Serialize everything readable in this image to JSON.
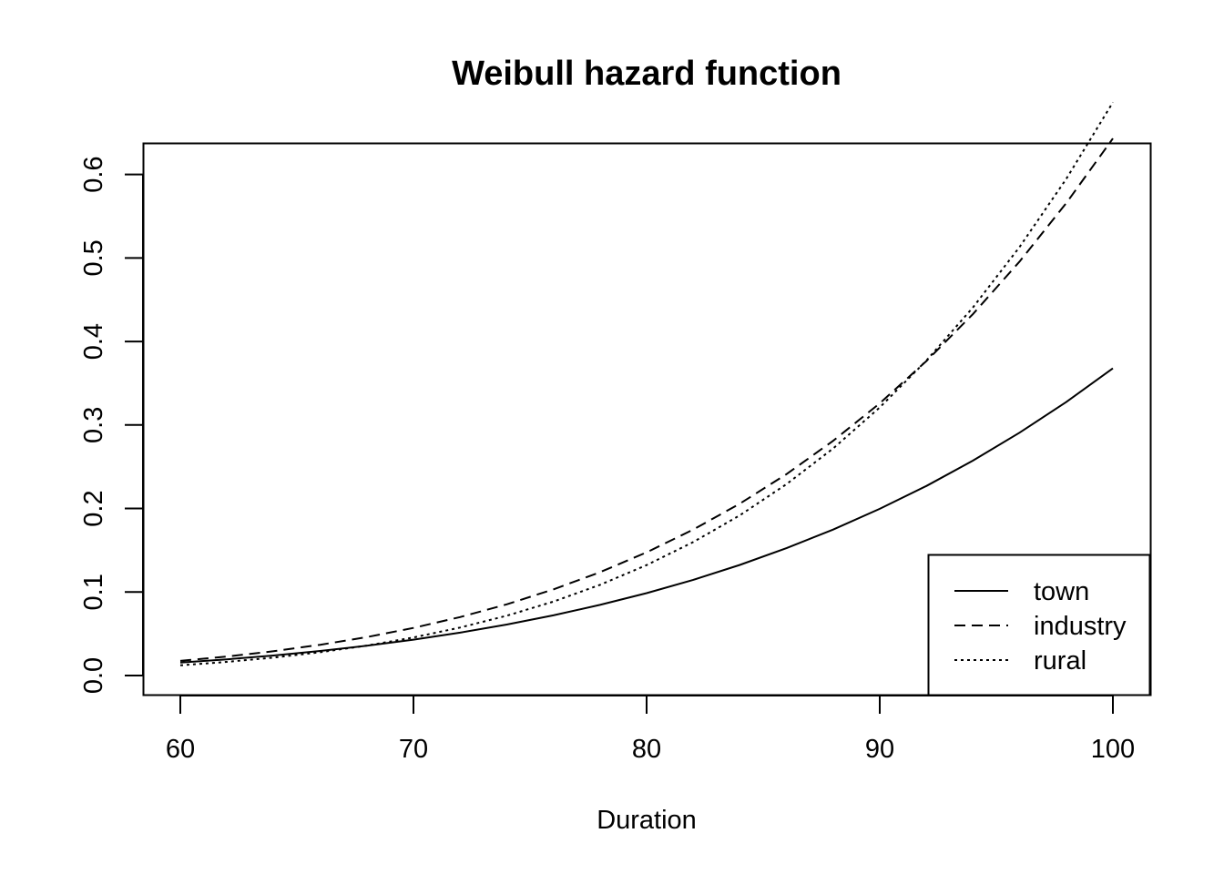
{
  "chart_data": {
    "type": "line",
    "title": "Weibull hazard function",
    "xlabel": "Duration",
    "ylabel": "",
    "xlim": [
      60,
      100
    ],
    "ylim": [
      0.0,
      0.6
    ],
    "xticks": [
      "60",
      "70",
      "80",
      "90",
      "100"
    ],
    "yticks": [
      "0.0",
      "0.1",
      "0.2",
      "0.3",
      "0.4",
      "0.5",
      "0.6"
    ],
    "grid": false,
    "legend_position": "bottom-right",
    "x": [
      60,
      62,
      64,
      66,
      68,
      70,
      72,
      74,
      76,
      78,
      80,
      82,
      84,
      86,
      88,
      90,
      92,
      94,
      96,
      98,
      100
    ],
    "series": [
      {
        "name": "town",
        "line_style": "solid",
        "values": [
          0.0155,
          0.0194,
          0.024,
          0.0294,
          0.0357,
          0.043,
          0.0514,
          0.0611,
          0.0721,
          0.0846,
          0.0987,
          0.1146,
          0.1325,
          0.1525,
          0.1748,
          0.1996,
          0.227,
          0.2574,
          0.2908,
          0.3275,
          0.3678
        ]
      },
      {
        "name": "industry",
        "line_style": "dashed",
        "values": [
          0.0176,
          0.0228,
          0.0291,
          0.0368,
          0.046,
          0.057,
          0.07,
          0.0853,
          0.1031,
          0.1237,
          0.1475,
          0.1747,
          0.2058,
          0.2411,
          0.281,
          0.326,
          0.3765,
          0.4329,
          0.4958,
          0.5657,
          0.6431
        ]
      },
      {
        "name": "rural",
        "line_style": "dotted",
        "values": [
          0.0122,
          0.0163,
          0.0215,
          0.0279,
          0.0359,
          0.0456,
          0.0574,
          0.0716,
          0.0885,
          0.1086,
          0.1322,
          0.1598,
          0.1919,
          0.2291,
          0.2719,
          0.321,
          0.3771,
          0.4409,
          0.5132,
          0.5947,
          0.6864
        ]
      }
    ]
  }
}
